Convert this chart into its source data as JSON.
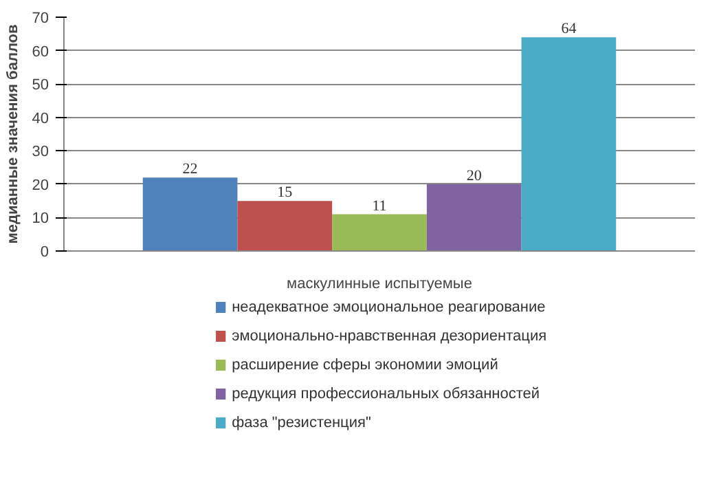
{
  "chart_data": {
    "type": "bar",
    "ylabel": "медианные значения баллов",
    "categories": [
      "маскулинные испытуемые"
    ],
    "series": [
      {
        "name": "неадекватное эмоциональное реагирование",
        "color": "#4f81bd",
        "values": [
          22
        ]
      },
      {
        "name": "эмоционально-нравственная дезориентация",
        "color": "#c0504d",
        "values": [
          15
        ]
      },
      {
        "name": "расширение сферы экономии эмоций",
        "color": "#9bbb59",
        "values": [
          11
        ]
      },
      {
        "name": "редукция профессиональных обязанностей",
        "color": "#8064a2",
        "values": [
          20
        ]
      },
      {
        "name": "фаза \"резистенция\"",
        "color": "#4bacc6",
        "values": [
          64
        ]
      }
    ],
    "ylim": [
      0,
      70
    ],
    "yticks": [
      0,
      10,
      20,
      30,
      40,
      50,
      60,
      70
    ],
    "grid": "y",
    "legend": "bottom",
    "data_labels": true
  }
}
